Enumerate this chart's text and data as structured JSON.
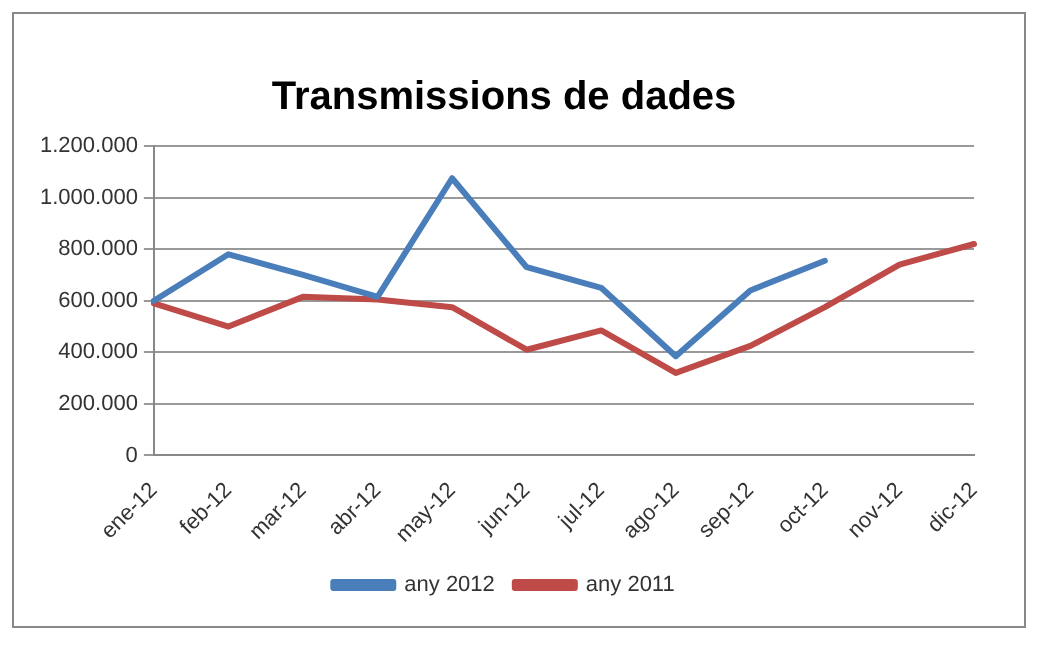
{
  "chart_data": {
    "type": "line",
    "title": "Transmissions de dades",
    "categories": [
      "ene-12",
      "feb-12",
      "mar-12",
      "abr-12",
      "may-12",
      "jun-12",
      "jul-12",
      "ago-12",
      "sep-12",
      "oct-12",
      "nov-12",
      "dic-12"
    ],
    "series": [
      {
        "name": "any 2012",
        "color": "#4a7ebb",
        "values": [
          600000,
          780000,
          700000,
          615000,
          1075000,
          730000,
          650000,
          385000,
          640000,
          755000,
          null,
          null
        ]
      },
      {
        "name": "any 2011",
        "color": "#be4b48",
        "values": [
          590000,
          500000,
          615000,
          605000,
          575000,
          410000,
          485000,
          320000,
          425000,
          575000,
          740000,
          820000
        ]
      }
    ],
    "ylim": [
      0,
      1200000
    ],
    "yticks": [
      {
        "value": 0,
        "label": "0"
      },
      {
        "value": 200000,
        "label": "200.000"
      },
      {
        "value": 400000,
        "label": "400.000"
      },
      {
        "value": 600000,
        "label": "600.000"
      },
      {
        "value": 800000,
        "label": "800.000"
      },
      {
        "value": 1000000,
        "label": "1.000.000"
      },
      {
        "value": 1200000,
        "label": "1.200.000"
      }
    ],
    "grid": "y",
    "legend": "bottom",
    "marker": "none",
    "line_style": "solid"
  }
}
